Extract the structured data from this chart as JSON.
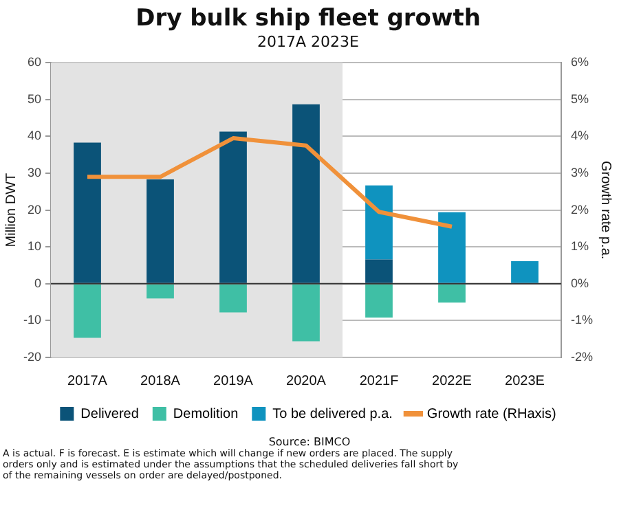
{
  "chart_data": {
    "type": "bar",
    "title": "Dry bulk ship fleet growth",
    "subtitle": "2017A 2023E",
    "ylabel": "Million DWT",
    "y2label": "Growth rate p.a.",
    "categories": [
      "2017A",
      "2018A",
      "2019A",
      "2020A",
      "2021F",
      "2022E",
      "2023E"
    ],
    "series": [
      {
        "name": "Delivered",
        "color": "#0b5378",
        "values": [
          38.3,
          28.3,
          41.3,
          48.7,
          6.6,
          null,
          null
        ]
      },
      {
        "name": "Demolition",
        "color": "#3fbfa5",
        "values": [
          -14.7,
          -4,
          -7.8,
          -15.6,
          -9.2,
          -5.1,
          null
        ]
      },
      {
        "name": "To be delivered p.a.",
        "color": "#0f93bf",
        "values": [
          null,
          null,
          null,
          null,
          20.1,
          19.4,
          6.1
        ]
      },
      {
        "name": "Growth rate (RHaxis)",
        "type": "line",
        "axis": "y2",
        "color": "#f0913a",
        "values": [
          2.9,
          2.9,
          3.95,
          3.75,
          1.95,
          1.55,
          null
        ]
      }
    ],
    "stacked": true,
    "ylim": [
      -20,
      60
    ],
    "yticks": [
      -20,
      -10,
      0,
      10,
      20,
      30,
      40,
      50,
      60
    ],
    "y2lim": [
      -2,
      6
    ],
    "y2ticks": [
      {
        "value": -2,
        "label": "-2%"
      },
      {
        "value": -1,
        "label": "-1%"
      },
      {
        "value": 0,
        "label": "0%"
      },
      {
        "value": 1,
        "label": "1%"
      },
      {
        "value": 2,
        "label": "2%"
      },
      {
        "value": 3,
        "label": "3%"
      },
      {
        "value": 4,
        "label": "4%"
      },
      {
        "value": 5,
        "label": "5%"
      },
      {
        "value": 6,
        "label": "6%"
      }
    ],
    "bands": [
      {
        "axis": "x",
        "from": "2017A",
        "to": "2020A",
        "color": "#e3e3e3"
      }
    ],
    "grid": "y",
    "legend": "bottom",
    "marker": "none",
    "annotations": [
      "Source: BIMCO",
      "A is actual. F is forecast. E is estimate which will change if new orders are placed. The supply",
      "orders only and is estimated under the assumptions that the scheduled deliveries fall short by",
      "of the remaining vessels on order are delayed/postponed."
    ]
  }
}
